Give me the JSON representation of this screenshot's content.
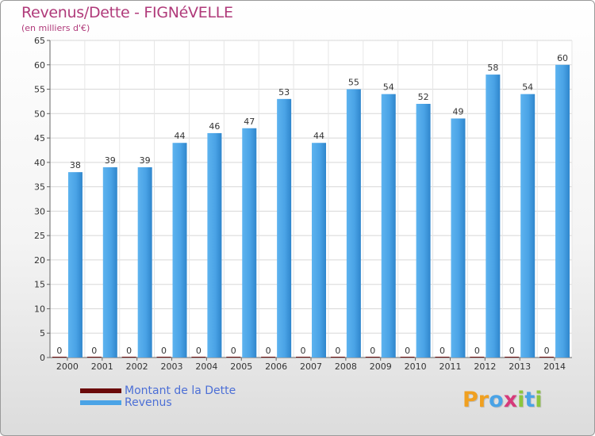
{
  "title": "Revenus/Dette - FIGNéVELLE",
  "subtitle": "(en milliers d'€)",
  "legend": [
    {
      "label": "Montant de la Dette",
      "color": "#6b0a0a"
    },
    {
      "label": "Revenus",
      "color": "#4aa3e6"
    }
  ],
  "logo": {
    "letters": [
      {
        "char": "P",
        "color": "#f0a020"
      },
      {
        "char": "r",
        "color": "#f0a020"
      },
      {
        "char": "o",
        "color": "#4aa3e6"
      },
      {
        "char": "x",
        "color": "#d63a7a"
      },
      {
        "char": "i",
        "color": "#8cc63e"
      },
      {
        "char": "t",
        "color": "#4aa3e6"
      },
      {
        "char": "i",
        "color": "#8cc63e"
      }
    ]
  },
  "chart_data": {
    "type": "bar",
    "categories": [
      "2000",
      "2001",
      "2002",
      "2003",
      "2004",
      "2005",
      "2006",
      "2007",
      "2008",
      "2009",
      "2010",
      "2011",
      "2012",
      "2013",
      "2014"
    ],
    "series": [
      {
        "name": "Montant de la Dette",
        "values": [
          0,
          0,
          0,
          0,
          0,
          0,
          0,
          0,
          0,
          0,
          0,
          0,
          0,
          0,
          0
        ],
        "color": "#6b0a0a"
      },
      {
        "name": "Revenus",
        "values": [
          38,
          39,
          39,
          44,
          46,
          47,
          53,
          44,
          55,
          54,
          52,
          49,
          58,
          54,
          60
        ],
        "color": "#4aa3e6"
      }
    ],
    "ylim": [
      0,
      65
    ],
    "yticks": [
      0,
      5,
      10,
      15,
      20,
      25,
      30,
      35,
      40,
      45,
      50,
      55,
      60,
      65
    ],
    "grid": true,
    "legend_position": "bottom-left"
  }
}
